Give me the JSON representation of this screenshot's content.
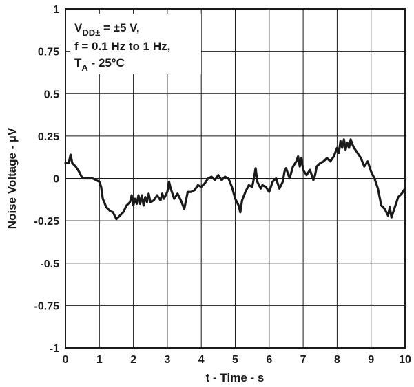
{
  "chart_data": {
    "type": "line",
    "xlabel": "t - Time - s",
    "ylabel": "Noise Voltage - µV",
    "xlim": [
      0,
      10
    ],
    "ylim": [
      -1,
      1
    ],
    "x_ticks": [
      "0",
      "1",
      "2",
      "3",
      "4",
      "5",
      "6",
      "7",
      "8",
      "9",
      "10"
    ],
    "y_ticks": [
      "1",
      "0.75",
      "0.5",
      "0.25",
      "0",
      "-0.25",
      "-0.5",
      "-0.75",
      "-1"
    ],
    "grid": true,
    "conditions": {
      "line1_main": "V",
      "line1_sub": "DD±",
      "line1_rest": " = ±5 V,",
      "line2": "f = 0.1 Hz to 1 Hz,",
      "line3_main": "T",
      "line3_sub": "A",
      "line3_rest": " - 25°C"
    },
    "series": [
      {
        "x": [
          0.0,
          0.1,
          0.15,
          0.2,
          0.3,
          0.4,
          0.5,
          0.6,
          0.7,
          0.8,
          0.9,
          1.0,
          1.05,
          1.1,
          1.2,
          1.3,
          1.4,
          1.5,
          1.6,
          1.7,
          1.8,
          1.9,
          1.95,
          2.0,
          2.05,
          2.1,
          2.15,
          2.2,
          2.25,
          2.3,
          2.35,
          2.4,
          2.45,
          2.5,
          2.6,
          2.7,
          2.8,
          2.85,
          2.9,
          3.0,
          3.05,
          3.1,
          3.2,
          3.3,
          3.4,
          3.5,
          3.55,
          3.6,
          3.7,
          3.8,
          3.9,
          4.0,
          4.1,
          4.2,
          4.3,
          4.4,
          4.5,
          4.6,
          4.7,
          4.8,
          4.9,
          5.0,
          5.1,
          5.15,
          5.2,
          5.3,
          5.4,
          5.5,
          5.55,
          5.6,
          5.65,
          5.7,
          5.75,
          5.8,
          5.9,
          6.0,
          6.1,
          6.2,
          6.3,
          6.4,
          6.45,
          6.5,
          6.6,
          6.7,
          6.8,
          6.85,
          6.9,
          6.95,
          7.0,
          7.1,
          7.2,
          7.3,
          7.35,
          7.4,
          7.5,
          7.6,
          7.7,
          7.8,
          7.9,
          8.0,
          8.05,
          8.1,
          8.15,
          8.2,
          8.25,
          8.3,
          8.35,
          8.4,
          8.45,
          8.5,
          8.6,
          8.7,
          8.8,
          8.9,
          9.0,
          9.1,
          9.2,
          9.3,
          9.4,
          9.5,
          9.55,
          9.6,
          9.7,
          9.8,
          9.9,
          10.0
        ],
        "y": [
          0.09,
          0.09,
          0.14,
          0.09,
          0.07,
          0.04,
          0.0,
          0.0,
          0.0,
          0.0,
          -0.01,
          -0.02,
          -0.05,
          -0.12,
          -0.17,
          -0.19,
          -0.2,
          -0.24,
          -0.22,
          -0.2,
          -0.16,
          -0.14,
          -0.1,
          -0.16,
          -0.12,
          -0.15,
          -0.1,
          -0.15,
          -0.1,
          -0.16,
          -0.11,
          -0.14,
          -0.09,
          -0.14,
          -0.13,
          -0.1,
          -0.13,
          -0.09,
          -0.12,
          -0.08,
          -0.02,
          -0.06,
          -0.12,
          -0.09,
          -0.13,
          -0.18,
          -0.13,
          -0.08,
          -0.08,
          -0.07,
          -0.04,
          -0.05,
          -0.03,
          0.0,
          0.01,
          -0.01,
          0.02,
          -0.01,
          0.01,
          0.0,
          -0.05,
          -0.12,
          -0.16,
          -0.2,
          -0.13,
          -0.08,
          -0.04,
          -0.05,
          0.0,
          0.06,
          -0.02,
          -0.04,
          -0.06,
          -0.04,
          -0.05,
          -0.08,
          -0.02,
          0.0,
          -0.06,
          -0.02,
          0.04,
          0.06,
          0.0,
          0.07,
          0.1,
          0.13,
          0.07,
          0.12,
          0.05,
          0.02,
          0.05,
          -0.01,
          0.02,
          0.07,
          0.09,
          0.1,
          0.12,
          0.1,
          0.13,
          0.18,
          0.15,
          0.22,
          0.18,
          0.23,
          0.17,
          0.21,
          0.18,
          0.23,
          0.2,
          0.18,
          0.15,
          0.12,
          0.07,
          0.1,
          0.04,
          0.0,
          -0.06,
          -0.16,
          -0.18,
          -0.22,
          -0.17,
          -0.23,
          -0.17,
          -0.11,
          -0.09,
          -0.06
        ]
      }
    ]
  }
}
